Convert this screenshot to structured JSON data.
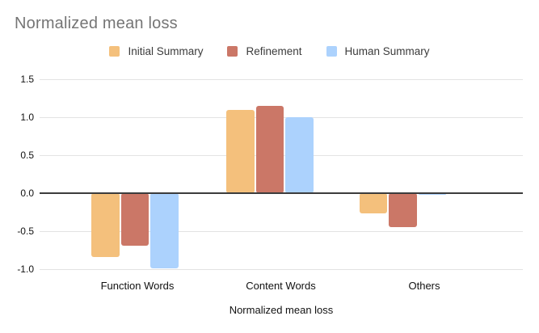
{
  "chart_data": {
    "type": "bar",
    "title": "Normalized mean loss",
    "xlabel": "Normalized mean loss",
    "ylabel": "",
    "categories": [
      "Function Words",
      "Content Words",
      "Others"
    ],
    "series": [
      {
        "name": "Initial Summary",
        "color": "#F4C07C",
        "values": [
          -0.84,
          1.1,
          -0.27
        ]
      },
      {
        "name": "Refinement",
        "color": "#CB7767",
        "values": [
          -0.69,
          1.15,
          -0.45
        ]
      },
      {
        "name": "Human Summary",
        "color": "#ACD2FD",
        "values": [
          -0.99,
          1.0,
          -0.02
        ]
      }
    ],
    "ylim": [
      -1.0,
      1.5
    ],
    "y_tick_labels": [
      "1.5",
      "1.0",
      "0.5",
      "0.0",
      "-0.5",
      "-1.0"
    ],
    "grid": true,
    "legend_position": "top"
  },
  "colors": {
    "title_text": "#757575",
    "axis_text": "#111111",
    "legend_text": "#3b3b3b",
    "gridline": "#e3e3e3",
    "zero_line": "#3c3c3c",
    "background": "#ffffff"
  }
}
